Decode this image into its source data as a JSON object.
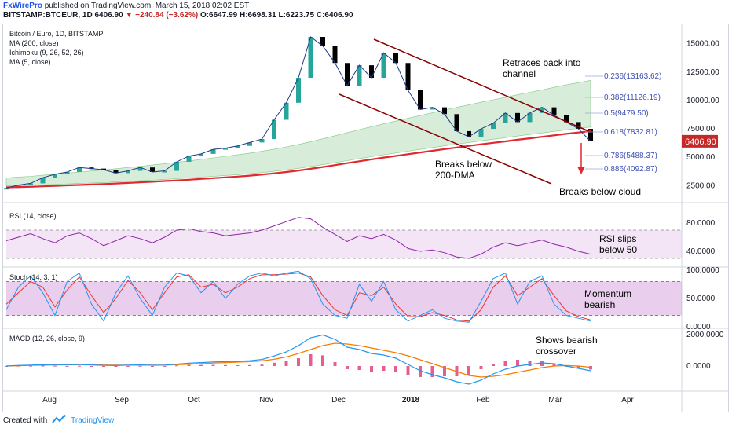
{
  "header": {
    "brand": "FxWirePro",
    "published": "published on TradingView.com, March 15, 2018 02:02 EST",
    "symbol": "BITSTAMP:BTCEUR, 1D",
    "last": "6406.90",
    "change": "−240.84 (−3.62%)",
    "ohlc": "O:6647.99 H:6698.31 L:6223.75 C:6406.90"
  },
  "footer": {
    "created_with": "Created with",
    "tv": "TradingView"
  },
  "colors": {
    "ma200": "#e0282e",
    "price_up": "#26a69a",
    "price_down": "#000000",
    "cloud_bull": "#c8e6c9",
    "cloud_bear": "#f8c6c6",
    "rsi": "#8e24aa",
    "stoch_k": "#2196f3",
    "stoch_d": "#e53935",
    "macd": "#2196f3",
    "signal": "#f57c00",
    "hist": "#d81b60",
    "annotation": "#000000",
    "channel": "#8b0000",
    "fib": "#3f51b5"
  },
  "chart_data": [
    {
      "type": "line",
      "title": "Bitcoin / Euro, 1D, BITSTAMP",
      "legend": [
        "Bitcoin / Euro, 1D, BITSTAMP",
        "MA (200, close)",
        "Ichimoku (9, 26, 52, 26)",
        "MA (5, close)"
      ],
      "x_ticks": [
        "Aug",
        "Sep",
        "Oct",
        "Nov",
        "Dec",
        "2018",
        "Feb",
        "Mar",
        "Apr"
      ],
      "y_ticks": [
        "15000.00",
        "12500.00",
        "10000.00",
        "7500.00",
        "5000.00",
        "2500.00"
      ],
      "ylim": [
        1000,
        16500
      ],
      "price_label": "6406.90",
      "price_close": [
        2300,
        2550,
        2700,
        3200,
        3500,
        3700,
        4100,
        4000,
        3900,
        3600,
        3800,
        4100,
        3700,
        3800,
        4600,
        5100,
        5300,
        5700,
        5800,
        6000,
        6300,
        6600,
        8300,
        9800,
        12000,
        15600,
        14800,
        13300,
        11300,
        13100,
        12000,
        14200,
        13300,
        10900,
        9200,
        9400,
        8800,
        7300,
        6800,
        7500,
        8000,
        8900,
        8100,
        8900,
        9400,
        8700,
        8100,
        7500,
        6406.9
      ],
      "ma200": [
        2350,
        2380,
        2400,
        2440,
        2480,
        2520,
        2560,
        2600,
        2640,
        2690,
        2740,
        2790,
        2840,
        2900,
        2960,
        3020,
        3090,
        3160,
        3230,
        3300,
        3380,
        3470,
        3580,
        3700,
        3830,
        3980,
        4140,
        4310,
        4480,
        4650,
        4810,
        4970,
        5120,
        5270,
        5420,
        5570,
        5720,
        5860,
        6000,
        6140,
        6270,
        6400,
        6540,
        6670,
        6800,
        6930,
        7060,
        7180,
        7300
      ],
      "annotations": [
        "Retraces back into channel",
        "Breaks below 200-DMA",
        "Breaks below cloud"
      ],
      "fib_levels": [
        "0.236(13163.62)",
        "0.382(11126.19)",
        "0.5(9479.50)",
        "0.618(7832.81)",
        "0.786(5488.37)",
        "0.886(4092.87)"
      ]
    },
    {
      "type": "line",
      "title": "RSI (14, close)",
      "y_ticks": [
        "80.0000",
        "40.0000"
      ],
      "ylim": [
        20,
        100
      ],
      "band": [
        30,
        70
      ],
      "values": [
        55,
        60,
        65,
        58,
        52,
        62,
        66,
        58,
        48,
        55,
        62,
        58,
        52,
        60,
        70,
        72,
        68,
        66,
        62,
        64,
        66,
        70,
        76,
        82,
        88,
        86,
        74,
        64,
        54,
        62,
        58,
        64,
        56,
        44,
        40,
        42,
        38,
        32,
        30,
        36,
        46,
        52,
        48,
        52,
        56,
        50,
        46,
        40,
        36
      ],
      "annotation": "RSI slips below 50"
    },
    {
      "type": "line",
      "title": "Stoch (14, 3, 1)",
      "y_ticks": [
        "100.0000",
        "50.0000",
        "0.0000"
      ],
      "ylim": [
        0,
        100
      ],
      "band": [
        20,
        80
      ],
      "k": [
        30,
        70,
        90,
        60,
        20,
        80,
        95,
        40,
        10,
        60,
        90,
        50,
        20,
        70,
        95,
        90,
        60,
        80,
        50,
        75,
        90,
        95,
        90,
        95,
        98,
        85,
        40,
        20,
        15,
        75,
        45,
        80,
        30,
        10,
        20,
        30,
        15,
        10,
        8,
        45,
        85,
        95,
        40,
        80,
        90,
        40,
        20,
        15,
        10
      ],
      "d": [
        40,
        60,
        80,
        70,
        35,
        65,
        88,
        55,
        25,
        50,
        82,
        60,
        30,
        60,
        88,
        92,
        70,
        75,
        60,
        70,
        85,
        92,
        92,
        93,
        95,
        88,
        55,
        30,
        20,
        60,
        55,
        70,
        40,
        18,
        18,
        25,
        20,
        12,
        10,
        30,
        70,
        90,
        55,
        70,
        85,
        55,
        28,
        18,
        12
      ],
      "annotation": "Momentum bearish"
    },
    {
      "type": "line",
      "title": "MACD (12, 26, close, 9)",
      "y_ticks": [
        "2000.0000",
        "0.0000"
      ],
      "ylim": [
        -1500,
        2300
      ],
      "macd": [
        0,
        40,
        60,
        80,
        90,
        80,
        100,
        70,
        40,
        30,
        60,
        70,
        50,
        60,
        120,
        180,
        220,
        260,
        280,
        300,
        340,
        420,
        640,
        900,
        1300,
        1800,
        1980,
        1700,
        1200,
        1050,
        800,
        700,
        500,
        100,
        -300,
        -550,
        -750,
        -1000,
        -1150,
        -900,
        -500,
        -200,
        0,
        100,
        200,
        150,
        0,
        -150,
        -300
      ],
      "signal": [
        0,
        20,
        40,
        55,
        70,
        75,
        85,
        80,
        65,
        55,
        55,
        60,
        58,
        58,
        80,
        110,
        150,
        190,
        220,
        250,
        280,
        330,
        430,
        580,
        800,
        1050,
        1300,
        1450,
        1400,
        1300,
        1150,
        1000,
        850,
        650,
        400,
        150,
        -100,
        -350,
        -600,
        -700,
        -650,
        -550,
        -400,
        -250,
        -100,
        0,
        30,
        0,
        -80
      ],
      "annotation": "Shows bearish crossover"
    }
  ]
}
